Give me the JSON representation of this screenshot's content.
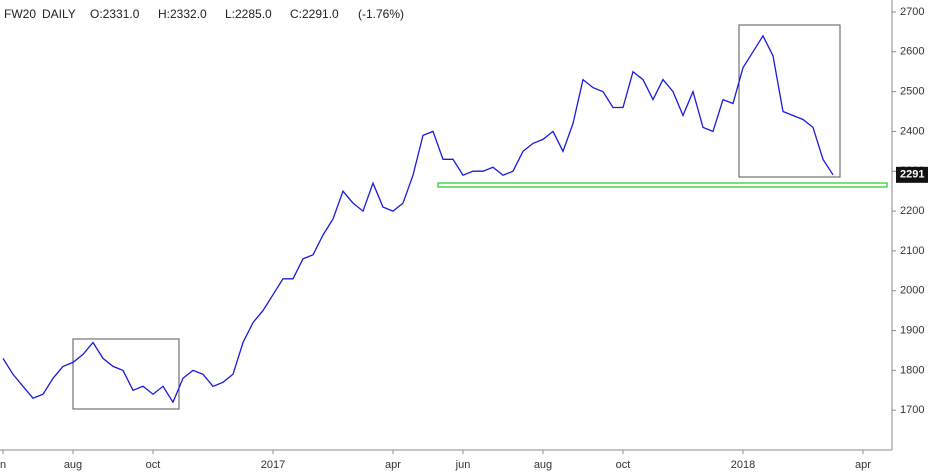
{
  "chart_data": {
    "type": "line",
    "title": "FW20",
    "interval": "DAILY",
    "ohlc_labels": [
      "O:2331.0",
      "H:2332.0",
      "L:2285.0",
      "C:2291.0"
    ],
    "change": "(-1.76%)",
    "categories": [
      "n",
      null,
      null,
      null,
      null,
      null,
      null,
      "aug",
      null,
      null,
      null,
      null,
      null,
      null,
      null,
      "oct",
      null,
      null,
      null,
      null,
      null,
      null,
      null,
      null,
      null,
      null,
      null,
      "2017",
      null,
      null,
      null,
      null,
      null,
      null,
      null,
      null,
      null,
      null,
      null,
      "apr",
      null,
      null,
      null,
      null,
      null,
      null,
      "jun",
      null,
      null,
      null,
      null,
      null,
      null,
      null,
      "aug",
      null,
      null,
      null,
      null,
      null,
      null,
      null,
      "oct",
      null,
      null,
      null,
      null,
      null,
      null,
      null,
      null,
      null,
      null,
      null,
      "2018",
      null,
      null,
      null,
      null,
      null,
      null,
      null,
      null,
      null,
      null,
      null,
      "apr",
      null
    ],
    "values": [
      1830,
      1790,
      1760,
      1730,
      1740,
      1780,
      1810,
      1820,
      1840,
      1870,
      1830,
      1810,
      1800,
      1750,
      1760,
      1740,
      1760,
      1720,
      1780,
      1800,
      1790,
      1760,
      1770,
      1790,
      1870,
      1920,
      1950,
      1990,
      2030,
      2030,
      2080,
      2090,
      2140,
      2180,
      2250,
      2220,
      2200,
      2270,
      2210,
      2200,
      2220,
      2290,
      2390,
      2400,
      2330,
      2330,
      2290,
      2300,
      2300,
      2310,
      2290,
      2300,
      2350,
      2370,
      2380,
      2400,
      2350,
      2420,
      2530,
      2510,
      2500,
      2460,
      2460,
      2550,
      2530,
      2480,
      2530,
      2500,
      2440,
      2500,
      2410,
      2400,
      2480,
      2470,
      2560,
      2600,
      2640,
      2590,
      2450,
      2440,
      2430,
      2410,
      2330,
      2291,
      null,
      null,
      null,
      null
    ],
    "color": "#1a1adb",
    "ylim": [
      1600,
      2730
    ],
    "yticks": [
      1700,
      1800,
      1900,
      2000,
      2100,
      2200,
      2300,
      2400,
      2500,
      2600,
      2700
    ],
    "last_price": 2291
  }
}
